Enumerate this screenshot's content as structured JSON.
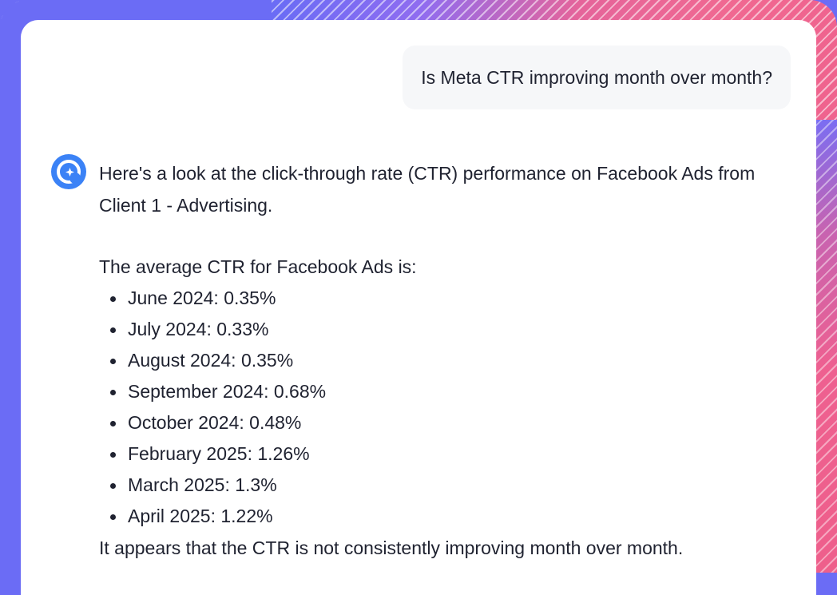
{
  "conversation": {
    "user_message": "Is Meta CTR improving month over month?",
    "assistant": {
      "avatar_icon": "assistant-spark-icon",
      "intro": "Here's a look at the click-through rate (CTR) performance on Facebook Ads from Client 1 - Advertising.",
      "average_heading": "The average CTR for Facebook Ads is:",
      "ctr_items": [
        "June 2024: 0.35%",
        "July 2024: 0.33%",
        "August 2024: 0.35%",
        "September 2024: 0.68%",
        "October 2024: 0.48%",
        "February 2025: 1.26%",
        "March 2025: 1.3%",
        "April 2025: 1.22%"
      ],
      "conclusion": "It appears that the CTR is not consistently improving month over month."
    }
  },
  "colors": {
    "accent_blue": "#3b82f6",
    "frame_purple": "#6b6cf5",
    "frame_pink": "#ee5f8c"
  }
}
